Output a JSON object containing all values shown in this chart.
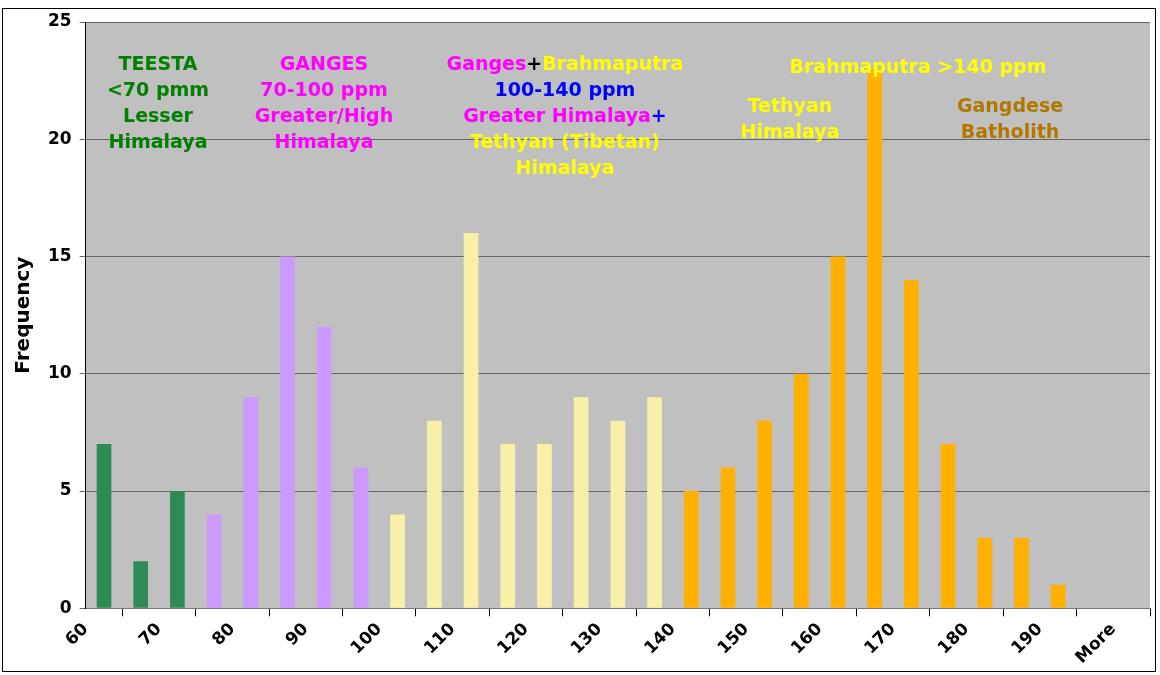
{
  "chart_data": {
    "type": "histogram",
    "ylabel": "Frequency",
    "bins": [
      60,
      65,
      70,
      75,
      80,
      85,
      90,
      95,
      100,
      105,
      110,
      115,
      120,
      125,
      130,
      135,
      140,
      145,
      150,
      155,
      160,
      165,
      170,
      175,
      180,
      185,
      190,
      195
    ],
    "values": [
      7,
      2,
      5,
      4,
      9,
      15,
      12,
      6,
      4,
      8,
      16,
      7,
      7,
      9,
      8,
      9,
      5,
      6,
      8,
      10,
      15,
      23,
      14,
      7,
      3,
      3,
      1
    ],
    "colors": [
      "#2e8b57",
      "#2e8b57",
      "#2e8b57",
      "#cc99ff",
      "#cc99ff",
      "#cc99ff",
      "#cc99ff",
      "#cc99ff",
      "#f8f0a8",
      "#f8f0a8",
      "#f8f0a8",
      "#f8f0a8",
      "#f8f0a8",
      "#f8f0a8",
      "#f8f0a8",
      "#f8f0a8",
      "#ffb000",
      "#ffb000",
      "#ffb000",
      "#ffb000",
      "#ffb000",
      "#ffb000",
      "#ffb000",
      "#ffb000",
      "#ffb000",
      "#ffb000",
      "#ffb000"
    ],
    "xlim": [
      60,
      205
    ],
    "xticks": [
      60,
      70,
      80,
      90,
      100,
      110,
      120,
      130,
      140,
      150,
      160,
      170,
      180,
      190,
      {
        "value": 200,
        "label": "More"
      }
    ],
    "ylim": [
      0,
      25
    ],
    "yticks": [
      0,
      5,
      10,
      15,
      20,
      25
    ],
    "grid": "y",
    "legend": false,
    "annotations": [
      "TEESTA",
      "<70 pmm",
      "Lesser",
      "Himalaya",
      "GANGES",
      "70-100 ppm",
      "Greater/High",
      "Himalaya",
      "Ganges",
      "+",
      "Brahmaputra",
      "100-140 ppm",
      "Greater Himalaya",
      "+",
      "Tethyan (Tibetan)",
      "Himalaya",
      "Brahmaputra >140 ppm",
      "Tethyan",
      "Himalaya",
      "Gangdese",
      "Batholith"
    ]
  }
}
